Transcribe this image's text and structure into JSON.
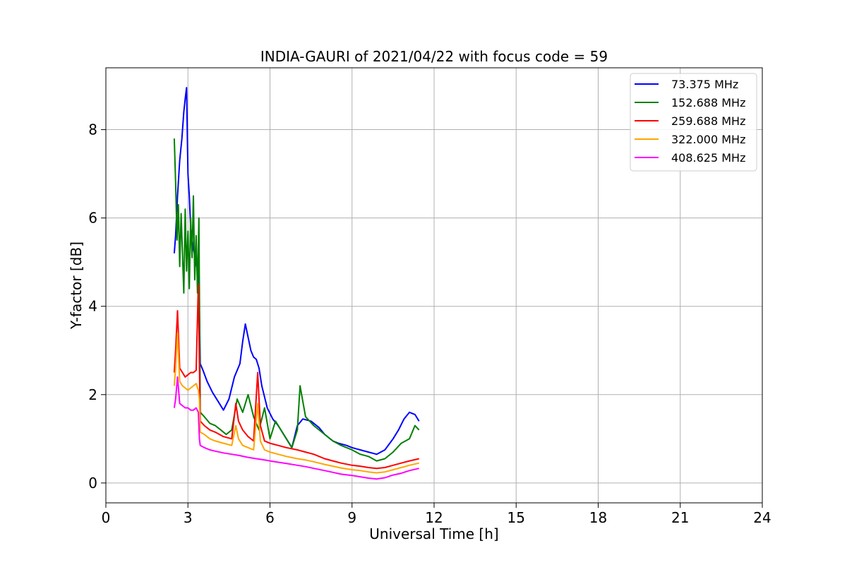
{
  "chart_data": {
    "type": "line",
    "title": "INDIA-GAURI of 2021/04/22 with focus code = 59",
    "xlabel": "Universal Time [h]",
    "ylabel": "Y-factor [dB]",
    "xlim": [
      0,
      24
    ],
    "ylim": [
      -0.45,
      9.4
    ],
    "xticks": [
      0,
      3,
      6,
      9,
      12,
      15,
      18,
      21,
      24
    ],
    "yticks": [
      0,
      2,
      4,
      6,
      8
    ],
    "xtick_labels": [
      "0",
      "3",
      "6",
      "9",
      "12",
      "15",
      "18",
      "21",
      "24"
    ],
    "ytick_labels": [
      "0",
      "2",
      "4",
      "6",
      "8"
    ],
    "grid": true,
    "legend_position": "top-right",
    "series": [
      {
        "name": " 73.375 MHz",
        "color": "#0000ff",
        "x": [
          2.5,
          2.55,
          2.62,
          2.7,
          2.78,
          2.85,
          2.9,
          2.95,
          3.0,
          3.05,
          3.1,
          3.2,
          3.3,
          3.4,
          3.45,
          3.55,
          3.7,
          3.9,
          4.1,
          4.3,
          4.5,
          4.7,
          4.9,
          5.0,
          5.1,
          5.2,
          5.3,
          5.4,
          5.5,
          5.6,
          5.7,
          5.9,
          6.1,
          6.3,
          6.5,
          6.8,
          7.0,
          7.2,
          7.5,
          7.8,
          8.0,
          8.3,
          8.5,
          8.8,
          9.0,
          9.3,
          9.6,
          9.9,
          10.2,
          10.5,
          10.7,
          10.9,
          11.1,
          11.3,
          11.45
        ],
        "y": [
          5.2,
          5.6,
          6.5,
          7.3,
          7.8,
          8.4,
          8.7,
          8.95,
          7.0,
          6.5,
          5.8,
          5.3,
          5.0,
          4.6,
          2.7,
          2.55,
          2.3,
          2.05,
          1.85,
          1.65,
          1.9,
          2.4,
          2.7,
          3.2,
          3.6,
          3.3,
          3.0,
          2.85,
          2.8,
          2.6,
          2.2,
          1.7,
          1.45,
          1.3,
          1.1,
          0.8,
          1.3,
          1.45,
          1.4,
          1.25,
          1.1,
          0.95,
          0.9,
          0.85,
          0.8,
          0.75,
          0.7,
          0.65,
          0.75,
          1.0,
          1.2,
          1.45,
          1.6,
          1.55,
          1.4
        ]
      },
      {
        "name": "152.688 MHz",
        "color": "#008000",
        "x": [
          2.5,
          2.55,
          2.6,
          2.65,
          2.7,
          2.75,
          2.8,
          2.85,
          2.9,
          2.95,
          3.0,
          3.05,
          3.1,
          3.15,
          3.2,
          3.25,
          3.3,
          3.35,
          3.4,
          3.45,
          3.6,
          3.8,
          4.0,
          4.2,
          4.4,
          4.6,
          4.8,
          5.0,
          5.2,
          5.4,
          5.6,
          5.8,
          6.0,
          6.2,
          6.5,
          6.8,
          7.0,
          7.1,
          7.3,
          7.6,
          8.0,
          8.3,
          8.6,
          9.0,
          9.3,
          9.6,
          9.9,
          10.2,
          10.5,
          10.8,
          11.1,
          11.3,
          11.45
        ],
        "y": [
          7.8,
          6.8,
          5.5,
          6.3,
          4.9,
          6.1,
          5.2,
          4.3,
          6.2,
          4.8,
          5.7,
          4.4,
          6.0,
          5.1,
          6.5,
          4.6,
          5.6,
          4.3,
          6.0,
          1.6,
          1.5,
          1.35,
          1.3,
          1.2,
          1.1,
          1.2,
          1.9,
          1.6,
          2.0,
          1.5,
          1.2,
          1.7,
          1.0,
          1.4,
          1.1,
          0.8,
          1.2,
          2.2,
          1.5,
          1.3,
          1.1,
          0.95,
          0.85,
          0.75,
          0.65,
          0.6,
          0.5,
          0.55,
          0.7,
          0.9,
          1.0,
          1.3,
          1.2
        ]
      },
      {
        "name": "259.688 MHz",
        "color": "#ff0000",
        "x": [
          2.5,
          2.55,
          2.62,
          2.7,
          2.8,
          2.9,
          3.0,
          3.1,
          3.2,
          3.3,
          3.38,
          3.42,
          3.45,
          3.6,
          3.8,
          4.0,
          4.3,
          4.6,
          4.75,
          4.85,
          5.0,
          5.2,
          5.4,
          5.55,
          5.65,
          5.8,
          6.0,
          6.3,
          6.6,
          7.0,
          7.3,
          7.6,
          8.0,
          8.3,
          8.6,
          9.0,
          9.3,
          9.6,
          9.9,
          10.2,
          10.5,
          10.8,
          11.1,
          11.45
        ],
        "y": [
          2.5,
          3.0,
          3.9,
          2.6,
          2.5,
          2.4,
          2.45,
          2.5,
          2.5,
          2.55,
          4.5,
          2.7,
          1.4,
          1.3,
          1.2,
          1.15,
          1.05,
          1.0,
          1.8,
          1.4,
          1.2,
          1.05,
          0.95,
          2.5,
          1.3,
          0.95,
          0.9,
          0.85,
          0.8,
          0.75,
          0.7,
          0.65,
          0.55,
          0.5,
          0.45,
          0.4,
          0.38,
          0.35,
          0.33,
          0.35,
          0.4,
          0.45,
          0.5,
          0.55
        ]
      },
      {
        "name": "322.000 MHz",
        "color": "#ffa500",
        "x": [
          2.5,
          2.55,
          2.62,
          2.7,
          2.8,
          2.9,
          3.0,
          3.1,
          3.2,
          3.3,
          3.38,
          3.42,
          3.45,
          3.6,
          3.8,
          4.0,
          4.3,
          4.6,
          4.75,
          4.85,
          5.0,
          5.2,
          5.4,
          5.55,
          5.65,
          5.8,
          6.0,
          6.3,
          6.6,
          7.0,
          7.3,
          7.6,
          8.0,
          8.3,
          8.6,
          9.0,
          9.3,
          9.6,
          9.9,
          10.2,
          10.5,
          10.8,
          11.1,
          11.45
        ],
        "y": [
          2.2,
          2.6,
          3.4,
          2.3,
          2.2,
          2.15,
          2.1,
          2.15,
          2.2,
          2.25,
          2.1,
          1.9,
          1.15,
          1.1,
          1.0,
          0.95,
          0.9,
          0.85,
          1.3,
          1.0,
          0.85,
          0.8,
          0.75,
          1.8,
          0.95,
          0.75,
          0.7,
          0.65,
          0.6,
          0.55,
          0.52,
          0.48,
          0.42,
          0.38,
          0.34,
          0.3,
          0.28,
          0.25,
          0.23,
          0.25,
          0.3,
          0.35,
          0.4,
          0.45
        ]
      },
      {
        "name": "408.625 MHz",
        "color": "#ff00ff",
        "x": [
          2.5,
          2.55,
          2.62,
          2.7,
          2.8,
          2.9,
          3.0,
          3.1,
          3.2,
          3.3,
          3.38,
          3.42,
          3.45,
          3.6,
          3.8,
          4.0,
          4.3,
          4.6,
          4.9,
          5.2,
          5.5,
          5.8,
          6.0,
          6.3,
          6.6,
          7.0,
          7.3,
          7.6,
          8.0,
          8.3,
          8.6,
          9.0,
          9.3,
          9.6,
          9.9,
          10.2,
          10.5,
          10.8,
          11.1,
          11.45
        ],
        "y": [
          1.7,
          1.9,
          2.4,
          1.8,
          1.75,
          1.7,
          1.7,
          1.65,
          1.65,
          1.7,
          1.6,
          1.0,
          0.85,
          0.8,
          0.75,
          0.72,
          0.68,
          0.65,
          0.62,
          0.58,
          0.55,
          0.52,
          0.5,
          0.47,
          0.44,
          0.4,
          0.37,
          0.33,
          0.28,
          0.24,
          0.2,
          0.17,
          0.14,
          0.11,
          0.09,
          0.12,
          0.18,
          0.22,
          0.28,
          0.33
        ]
      }
    ]
  }
}
